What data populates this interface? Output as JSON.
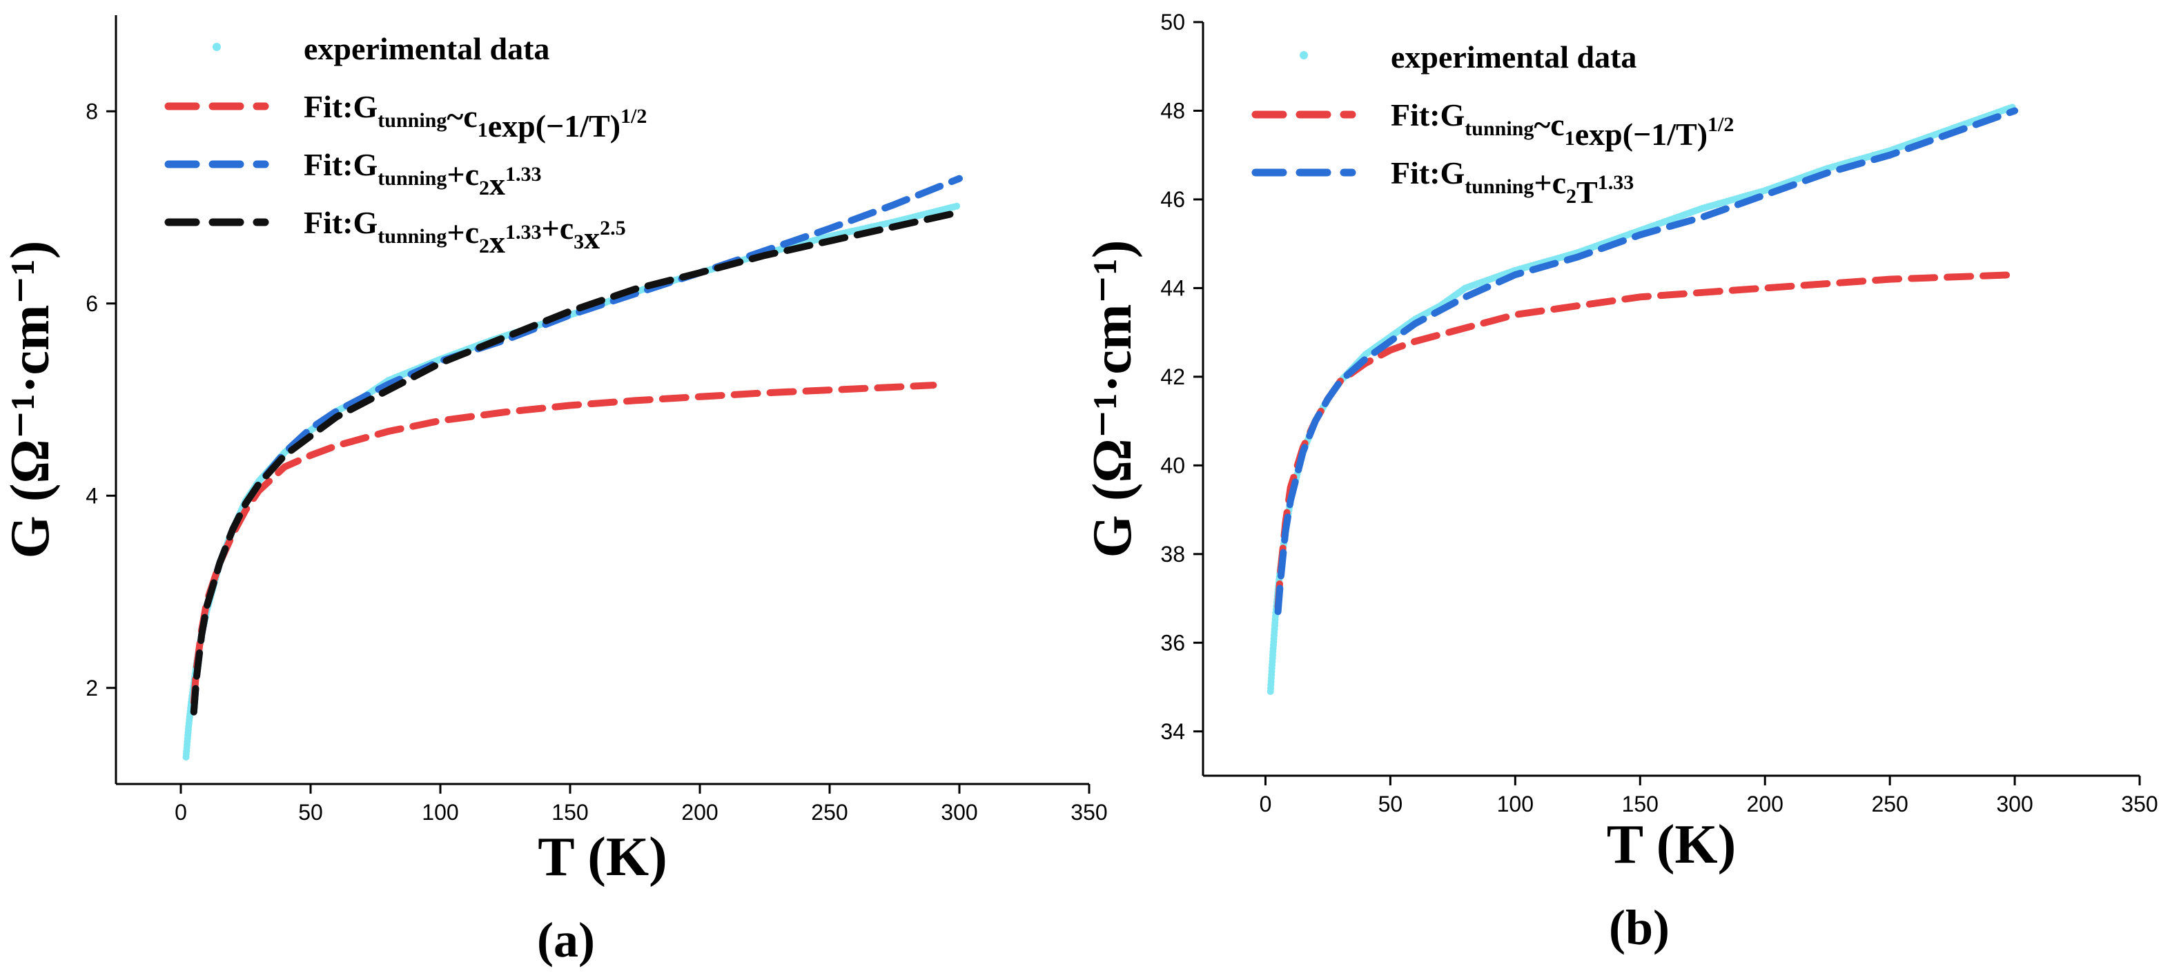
{
  "chart_data": [
    {
      "panel": "(a)",
      "type": "line",
      "title": "",
      "xlabel": "T (K)",
      "ylabel": "G (Ω⁻¹·cm⁻¹)",
      "xlim": [
        -25,
        350
      ],
      "ylim": [
        1,
        9
      ],
      "xticks": [
        0,
        50,
        100,
        150,
        200,
        250,
        300,
        350
      ],
      "yticks": [
        2,
        4,
        6,
        8
      ],
      "legend_position": "top-left",
      "legend": [
        {
          "label": "experimental data",
          "style": "dots",
          "color": "#7fe6f2"
        },
        {
          "label": "Fit:G_tunning~c_1exp(−1/T)^1/2",
          "style": "dash",
          "color": "#e84040"
        },
        {
          "label": "Fit:G_tunning+c_2x^1.33",
          "style": "dash",
          "color": "#2a6fd6"
        },
        {
          "label": "Fit:G_tunning+c_2x^1.33+c_3x^2.5",
          "style": "dash",
          "color": "#111111"
        }
      ],
      "series": [
        {
          "name": "experimental data",
          "style": "dots",
          "color": "#7fe6f2",
          "x": [
            2,
            3,
            4,
            5,
            6,
            8,
            10,
            15,
            20,
            25,
            30,
            40,
            50,
            60,
            70,
            80,
            100,
            120,
            150,
            175,
            200,
            225,
            250,
            275,
            300
          ],
          "y": [
            1.28,
            1.6,
            1.85,
            2.05,
            2.25,
            2.55,
            2.8,
            3.3,
            3.65,
            3.95,
            4.15,
            4.45,
            4.68,
            4.88,
            5.02,
            5.2,
            5.42,
            5.62,
            5.88,
            6.12,
            6.32,
            6.52,
            6.7,
            6.85,
            7.02
          ]
        },
        {
          "name": "Fit:G_tunning~c_1exp(−1/T)^1/2",
          "style": "dash",
          "color": "#e84040",
          "x": [
            5,
            6,
            8,
            10,
            15,
            20,
            25,
            30,
            40,
            50,
            60,
            80,
            100,
            125,
            150,
            175,
            200,
            225,
            250,
            275,
            290
          ],
          "y": [
            1.85,
            2.2,
            2.6,
            2.9,
            3.3,
            3.6,
            3.85,
            4.05,
            4.3,
            4.42,
            4.52,
            4.67,
            4.78,
            4.87,
            4.94,
            4.99,
            5.03,
            5.07,
            5.1,
            5.13,
            5.15
          ]
        },
        {
          "name": "Fit:G_tunning+c_2x^1.33",
          "style": "dash",
          "color": "#2a6fd6",
          "x": [
            5,
            6,
            8,
            10,
            15,
            20,
            25,
            30,
            40,
            50,
            60,
            80,
            100,
            125,
            150,
            175,
            200,
            225,
            250,
            275,
            300
          ],
          "y": [
            1.75,
            2.1,
            2.55,
            2.85,
            3.3,
            3.65,
            3.92,
            4.12,
            4.45,
            4.7,
            4.88,
            5.16,
            5.4,
            5.62,
            5.88,
            6.1,
            6.32,
            6.55,
            6.78,
            7.03,
            7.3
          ]
        },
        {
          "name": "Fit:G_tunning+c_2x^1.33+c_3x^2.5",
          "style": "dash",
          "color": "#111111",
          "x": [
            5,
            6,
            8,
            10,
            15,
            20,
            25,
            30,
            40,
            50,
            60,
            80,
            100,
            125,
            150,
            175,
            200,
            225,
            250,
            275,
            300
          ],
          "y": [
            1.75,
            2.1,
            2.55,
            2.85,
            3.3,
            3.65,
            3.92,
            4.12,
            4.42,
            4.62,
            4.82,
            5.1,
            5.38,
            5.65,
            5.92,
            6.15,
            6.32,
            6.5,
            6.65,
            6.8,
            6.95
          ]
        }
      ]
    },
    {
      "panel": "(b)",
      "type": "line",
      "title": "",
      "xlabel": "T (K)",
      "ylabel": "G (Ω⁻¹·cm⁻¹)",
      "xlim": [
        -25,
        350
      ],
      "ylim": [
        33,
        50
      ],
      "xticks": [
        0,
        50,
        100,
        150,
        200,
        250,
        300,
        350
      ],
      "yticks": [
        34,
        36,
        38,
        40,
        42,
        44,
        46,
        48,
        50
      ],
      "legend_position": "top-left",
      "legend": [
        {
          "label": "experimental data",
          "style": "dots",
          "color": "#7fe6f2"
        },
        {
          "label": "Fit:G_tunning~c_1exp(−1/T)^1/2",
          "style": "dash",
          "color": "#e84040"
        },
        {
          "label": "Fit:G_tunning+c_2T^1.33",
          "style": "dash",
          "color": "#2a6fd6"
        }
      ],
      "series": [
        {
          "name": "experimental data",
          "style": "dots",
          "color": "#7fe6f2",
          "x": [
            2,
            3,
            4,
            5,
            6,
            8,
            10,
            15,
            20,
            25,
            30,
            40,
            50,
            60,
            70,
            80,
            100,
            125,
            150,
            175,
            200,
            225,
            250,
            275,
            300
          ],
          "y": [
            34.9,
            35.8,
            36.6,
            37.2,
            37.7,
            38.5,
            39.2,
            40.3,
            41.0,
            41.5,
            41.9,
            42.5,
            42.9,
            43.3,
            43.6,
            44.0,
            44.4,
            44.8,
            45.3,
            45.8,
            46.2,
            46.7,
            47.1,
            47.6,
            48.1
          ]
        },
        {
          "name": "Fit:G_tunning~c_1exp(−1/T)^1/2",
          "style": "dash",
          "color": "#e84040",
          "x": [
            5,
            6,
            8,
            10,
            15,
            20,
            25,
            30,
            40,
            50,
            60,
            80,
            100,
            125,
            150,
            175,
            200,
            225,
            250,
            275,
            300
          ],
          "y": [
            36.8,
            37.6,
            38.7,
            39.5,
            40.4,
            41.0,
            41.5,
            41.9,
            42.3,
            42.6,
            42.8,
            43.1,
            43.4,
            43.6,
            43.8,
            43.9,
            44.0,
            44.1,
            44.2,
            44.25,
            44.3
          ]
        },
        {
          "name": "Fit:G_tunning+c_2T^1.33",
          "style": "dash",
          "color": "#2a6fd6",
          "x": [
            5,
            6,
            8,
            10,
            15,
            20,
            25,
            30,
            40,
            50,
            60,
            80,
            100,
            125,
            150,
            175,
            200,
            225,
            250,
            275,
            300
          ],
          "y": [
            36.7,
            37.4,
            38.5,
            39.2,
            40.3,
            41.0,
            41.5,
            41.9,
            42.4,
            42.8,
            43.2,
            43.8,
            44.3,
            44.7,
            45.2,
            45.6,
            46.1,
            46.6,
            47.0,
            47.5,
            48.0
          ]
        }
      ]
    }
  ]
}
